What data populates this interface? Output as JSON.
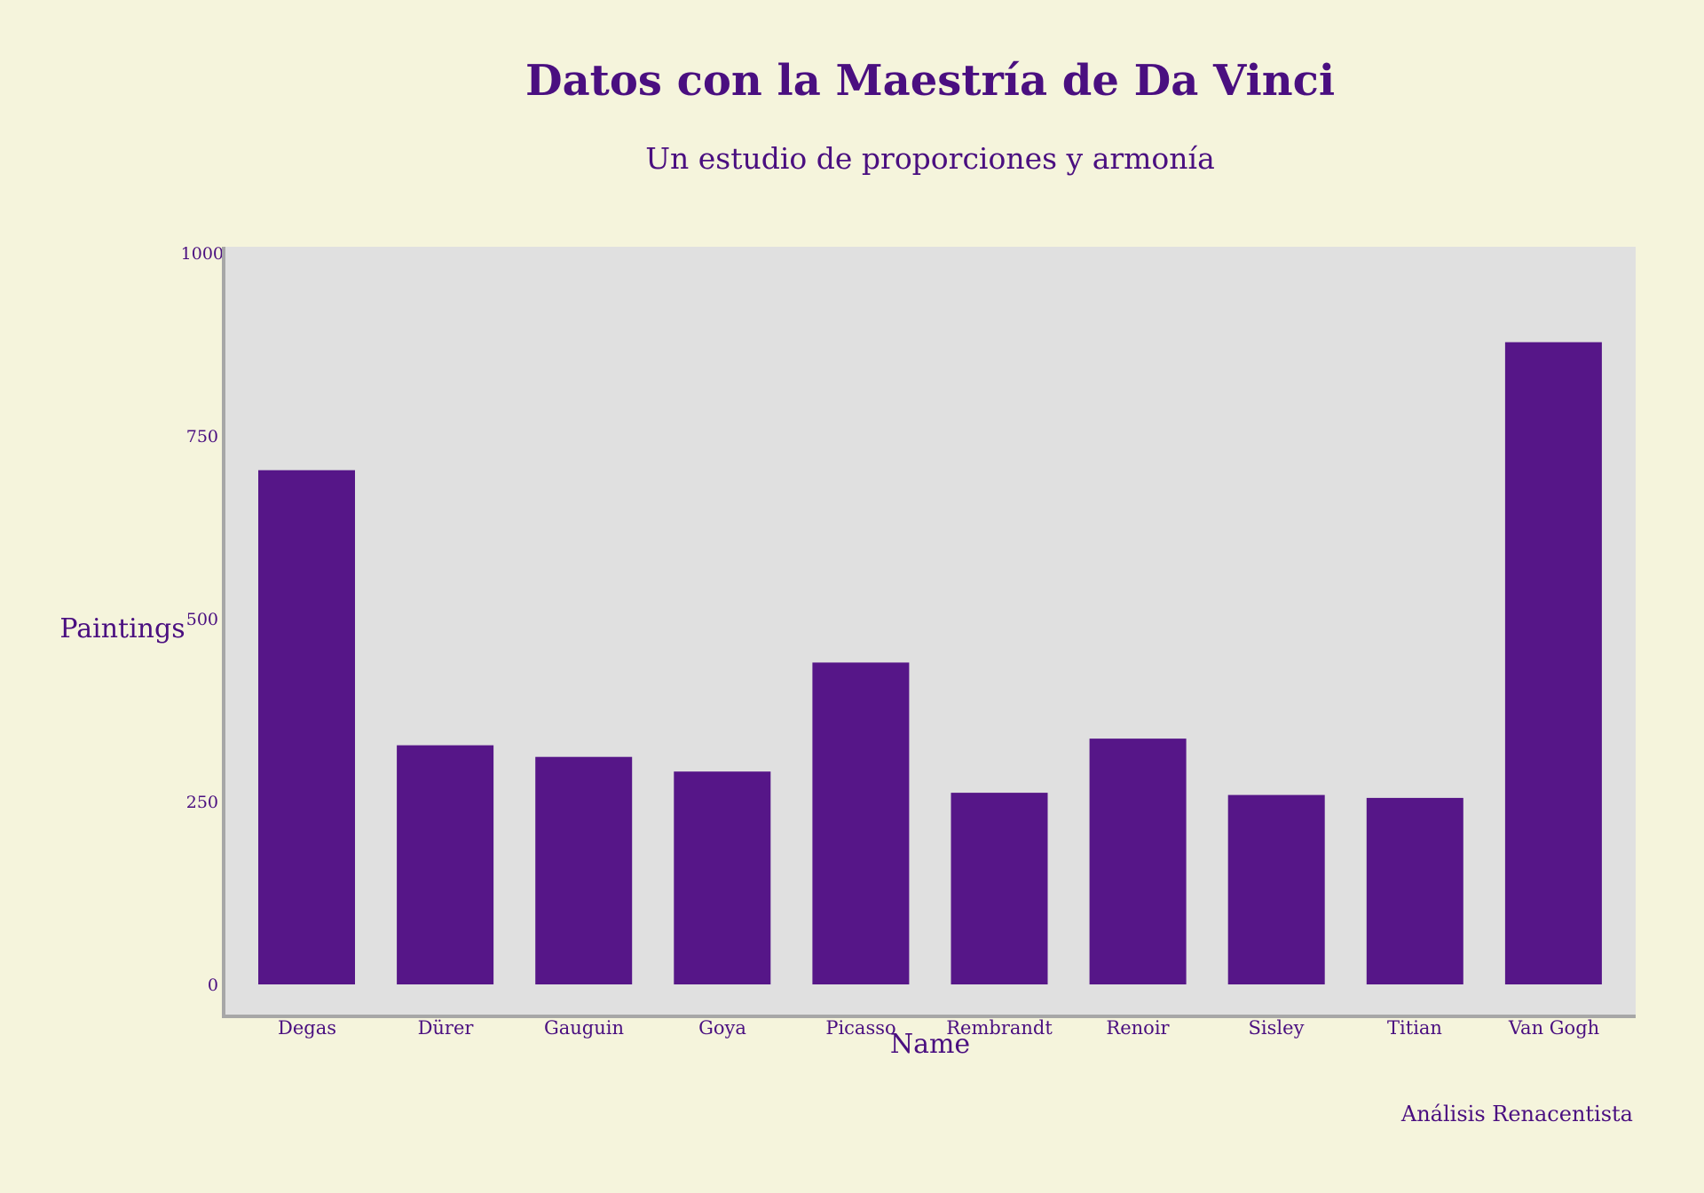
{
  "colors": {
    "background": "#f5f4dc",
    "plot_background": "#e0e0e0",
    "bar": "#561688",
    "text": "#4a0f80",
    "axis": "#a7a7a7"
  },
  "footer": "Análisis Renacentista",
  "chart_data": {
    "type": "bar",
    "title": "Datos con la Maestría de Da Vinci",
    "subtitle": "Un estudio de proporciones y armonía",
    "xlabel": "Name",
    "ylabel": "Paintings",
    "categories": [
      "Degas",
      "Dürer",
      "Gauguin",
      "Goya",
      "Picasso",
      "Rembrandt",
      "Renoir",
      "Sisley",
      "Titian",
      "Van Gogh"
    ],
    "values": [
      703,
      327,
      311,
      291,
      440,
      262,
      336,
      259,
      255,
      878
    ],
    "ylim": [
      0,
      1000
    ],
    "yticks": [
      0,
      250,
      500,
      750,
      1000
    ],
    "grid": false,
    "legend": "none"
  }
}
